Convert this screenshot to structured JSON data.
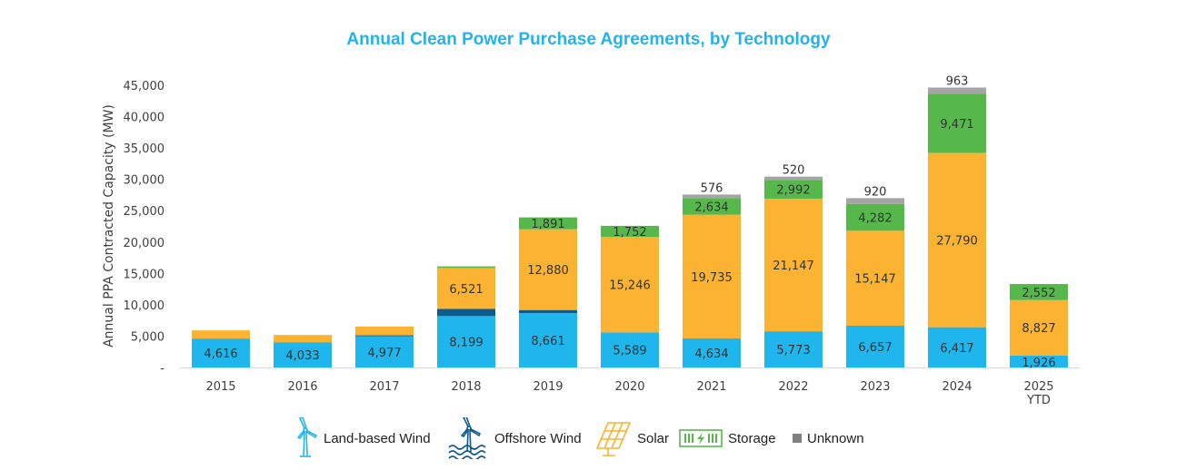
{
  "chart_data": {
    "type": "bar",
    "stacked": true,
    "title": "Annual Clean Power Purchase Agreements, by Technology",
    "xlabel": "",
    "ylabel": "Annual PPA Contracted Capacity (MW)",
    "ylim": [
      0,
      45000
    ],
    "yticks": [
      0,
      5000,
      10000,
      15000,
      20000,
      25000,
      30000,
      35000,
      40000,
      45000
    ],
    "ytick_labels": [
      "-",
      "5,000",
      "10,000",
      "15,000",
      "20,000",
      "25,000",
      "30,000",
      "35,000",
      "40,000",
      "45,000"
    ],
    "grid": false,
    "legend_position": "bottom",
    "categories": [
      "2015",
      "2016",
      "2017",
      "2018",
      "2019",
      "2020",
      "2021",
      "2022",
      "2023",
      "2024",
      "2025 YTD"
    ],
    "category_lines": [
      [
        "2015"
      ],
      [
        "2016"
      ],
      [
        "2017"
      ],
      [
        "2018"
      ],
      [
        "2019"
      ],
      [
        "2020"
      ],
      [
        "2021"
      ],
      [
        "2022"
      ],
      [
        "2023"
      ],
      [
        "2024"
      ],
      [
        "2025",
        "YTD"
      ]
    ],
    "series": [
      {
        "name": "Land-based Wind",
        "color": "#1fb6ee",
        "icon": "land-wind-icon",
        "values": [
          4616,
          4033,
          4977,
          8199,
          8661,
          5589,
          4634,
          5773,
          6657,
          6417,
          1926
        ],
        "labels": [
          "4,616",
          "4,033",
          "4,977",
          "8,199",
          "8,661",
          "5,589",
          "4,634",
          "5,773",
          "6,657",
          "6,417",
          "1,926"
        ]
      },
      {
        "name": "Offshore Wind",
        "color": "#0d5a8f",
        "icon": "offshore-wind-icon",
        "values": [
          0,
          0,
          150,
          1150,
          500,
          0,
          0,
          0,
          0,
          0,
          0
        ],
        "labels": [
          "",
          "",
          "",
          "",
          "",
          "",
          "",
          "",
          "",
          "",
          ""
        ]
      },
      {
        "name": "Solar",
        "color": "#fbb331",
        "icon": "solar-panel-icon",
        "values": [
          1300,
          1150,
          1400,
          6521,
          12880,
          15246,
          19735,
          21147,
          15147,
          27790,
          8827
        ],
        "labels": [
          "",
          "",
          "",
          "6,521",
          "12,880",
          "15,246",
          "19,735",
          "21,147",
          "15,147",
          "27,790",
          "8,827"
        ]
      },
      {
        "name": "Storage",
        "color": "#56b84b",
        "icon": "battery-storage-icon",
        "values": [
          0,
          0,
          0,
          250,
          1891,
          1752,
          2634,
          2992,
          4282,
          9471,
          2552
        ],
        "labels": [
          "",
          "",
          "",
          "",
          "1,891",
          "1,752",
          "2,634",
          "2,992",
          "4,282",
          "9,471",
          "2,552"
        ]
      },
      {
        "name": "Unknown",
        "color": "#a5a5a5",
        "icon": "square-icon",
        "values": [
          0,
          0,
          0,
          0,
          0,
          0,
          576,
          520,
          920,
          963,
          0
        ],
        "labels": [
          "",
          "",
          "",
          "",
          "",
          "",
          "576",
          "520",
          "920",
          "963",
          ""
        ]
      }
    ]
  }
}
